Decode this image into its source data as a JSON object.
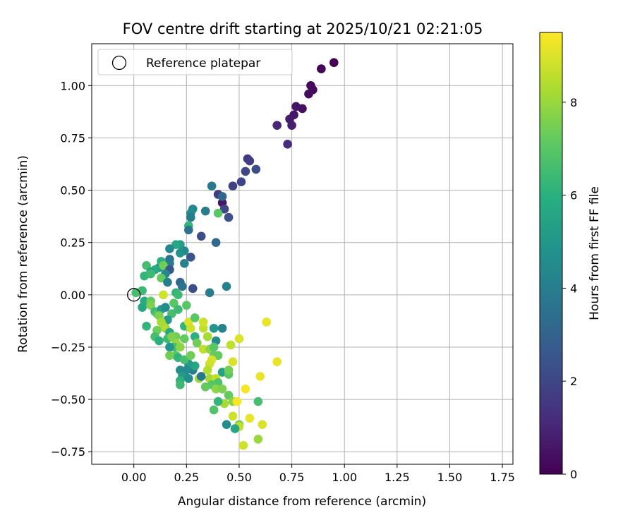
{
  "chart_data": {
    "type": "scatter",
    "title": "FOV centre drift starting at 2025/10/21 02:21:05",
    "xlabel": "Angular distance from reference (arcmin)",
    "ylabel": "Rotation from reference (arcmin)",
    "xlim": [
      -0.2,
      1.8
    ],
    "ylim": [
      -0.81,
      1.2
    ],
    "xticks": [
      "0.00",
      "0.25",
      "0.50",
      "0.75",
      "1.00",
      "1.25",
      "1.50",
      "1.75"
    ],
    "yticks": [
      "−0.75",
      "−0.50",
      "−0.25",
      "0.00",
      "0.25",
      "0.50",
      "0.75",
      "1.00"
    ],
    "grid": true,
    "legend": {
      "placement": "top-left",
      "entries": [
        {
          "label": "Reference platepar",
          "marker": "open-circle"
        }
      ]
    },
    "reference_point": {
      "x": 0,
      "y": 0
    },
    "colorbar": {
      "label": "Hours from first FF file",
      "colormap": "viridis",
      "min": 0,
      "max": 9.5,
      "ticks": [
        "0",
        "2",
        "4",
        "6",
        "8"
      ]
    },
    "series": [
      {
        "points": [
          [
            0.95,
            1.11,
            0.0
          ],
          [
            0.89,
            1.08,
            0.1
          ],
          [
            0.84,
            1.0,
            0.2
          ],
          [
            0.85,
            0.98,
            0.25
          ],
          [
            0.83,
            0.96,
            0.3
          ],
          [
            0.8,
            0.89,
            0.35
          ],
          [
            0.77,
            0.9,
            0.5
          ],
          [
            0.76,
            0.86,
            0.6
          ],
          [
            0.74,
            0.84,
            0.7
          ],
          [
            0.75,
            0.81,
            0.8
          ],
          [
            0.68,
            0.81,
            1.0
          ],
          [
            0.73,
            0.72,
            1.2
          ],
          [
            0.54,
            0.65,
            1.6
          ],
          [
            0.55,
            0.64,
            1.7
          ],
          [
            0.58,
            0.6,
            2.2
          ],
          [
            0.53,
            0.59,
            2.0
          ],
          [
            0.51,
            0.54,
            1.9
          ],
          [
            0.47,
            0.52,
            1.8
          ],
          [
            0.4,
            0.48,
            1.7
          ],
          [
            0.42,
            0.44,
            0.6
          ],
          [
            0.43,
            0.41,
            2.0
          ],
          [
            0.45,
            0.37,
            2.3
          ],
          [
            0.42,
            0.47,
            3.2
          ],
          [
            0.37,
            0.52,
            3.8
          ],
          [
            0.4,
            0.39,
            7.0
          ],
          [
            0.34,
            0.4,
            4.0
          ],
          [
            0.28,
            0.41,
            4.4
          ],
          [
            0.27,
            0.39,
            4.6
          ],
          [
            0.27,
            0.37,
            4.0
          ],
          [
            0.26,
            0.33,
            6.2
          ],
          [
            0.26,
            0.31,
            3.6
          ],
          [
            0.32,
            0.28,
            2.2
          ],
          [
            0.39,
            0.25,
            3.2
          ],
          [
            0.27,
            0.18,
            2.4
          ],
          [
            0.22,
            0.24,
            5.2
          ],
          [
            0.2,
            0.24,
            5.6
          ],
          [
            0.24,
            0.21,
            4.4
          ],
          [
            0.22,
            0.2,
            4.8
          ],
          [
            0.24,
            0.15,
            4.2
          ],
          [
            0.17,
            0.22,
            4.4
          ],
          [
            0.17,
            0.17,
            3.6
          ],
          [
            0.17,
            0.15,
            4.0
          ],
          [
            0.12,
            0.13,
            5.0
          ],
          [
            0.13,
            0.16,
            6.0
          ],
          [
            0.14,
            0.14,
            7.4
          ],
          [
            0.1,
            0.12,
            5.8
          ],
          [
            0.06,
            0.14,
            6.6
          ],
          [
            0.05,
            0.09,
            6.2
          ],
          [
            0.08,
            0.11,
            5.4
          ],
          [
            0.08,
            0.1,
            6.4
          ],
          [
            0.17,
            0.12,
            2.6
          ],
          [
            0.15,
            0.1,
            4.4
          ],
          [
            0.13,
            0.08,
            7.2
          ],
          [
            0.16,
            0.06,
            4.0
          ],
          [
            0.22,
            0.06,
            3.2
          ],
          [
            0.23,
            0.04,
            3.6
          ],
          [
            0.28,
            0.03,
            2.2
          ],
          [
            0.36,
            0.01,
            4.0
          ],
          [
            0.44,
            0.04,
            4.2
          ],
          [
            0.2,
            0.01,
            6.2
          ],
          [
            0.21,
            0.0,
            6.4
          ],
          [
            0.14,
            0.0,
            8.8
          ],
          [
            0.04,
            0.02,
            6.4
          ],
          [
            0.01,
            0.01,
            6.6
          ],
          [
            0.05,
            -0.03,
            5.8
          ],
          [
            0.04,
            -0.06,
            5.6
          ],
          [
            0.08,
            -0.03,
            7.2
          ],
          [
            0.08,
            -0.05,
            7.6
          ],
          [
            0.1,
            -0.08,
            6.4
          ],
          [
            0.11,
            -0.09,
            6.8
          ],
          [
            0.13,
            -0.07,
            5.2
          ],
          [
            0.12,
            -0.1,
            7.6
          ],
          [
            0.15,
            -0.06,
            4.6
          ],
          [
            0.18,
            -0.09,
            6.6
          ],
          [
            0.16,
            -0.12,
            5.2
          ],
          [
            0.19,
            -0.04,
            7.0
          ],
          [
            0.21,
            -0.07,
            6.4
          ],
          [
            0.25,
            -0.05,
            7.0
          ],
          [
            0.15,
            -0.16,
            7.8
          ],
          [
            0.14,
            -0.15,
            8.4
          ],
          [
            0.13,
            -0.13,
            8.2
          ],
          [
            0.11,
            -0.17,
            7.4
          ],
          [
            0.1,
            -0.2,
            6.6
          ],
          [
            0.12,
            -0.22,
            6.0
          ],
          [
            0.06,
            -0.15,
            6.2
          ],
          [
            0.17,
            -0.18,
            5.6
          ],
          [
            0.2,
            -0.2,
            7.4
          ],
          [
            0.2,
            -0.23,
            8.0
          ],
          [
            0.19,
            -0.25,
            6.6
          ],
          [
            0.17,
            -0.25,
            5.0
          ],
          [
            0.22,
            -0.25,
            7.8
          ],
          [
            0.24,
            -0.21,
            7.2
          ],
          [
            0.24,
            -0.15,
            6.2
          ],
          [
            0.26,
            -0.13,
            9.0
          ],
          [
            0.27,
            -0.16,
            8.8
          ],
          [
            0.29,
            -0.11,
            7.0
          ],
          [
            0.29,
            -0.2,
            6.0
          ],
          [
            0.3,
            -0.23,
            7.4
          ],
          [
            0.33,
            -0.16,
            8.6
          ],
          [
            0.33,
            -0.13,
            8.8
          ],
          [
            0.35,
            -0.2,
            8.2
          ],
          [
            0.33,
            -0.26,
            8.6
          ],
          [
            0.36,
            -0.26,
            7.8
          ],
          [
            0.38,
            -0.29,
            7.2
          ],
          [
            0.39,
            -0.22,
            4.6
          ],
          [
            0.38,
            -0.16,
            5.0
          ],
          [
            0.38,
            -0.25,
            7.0
          ],
          [
            0.42,
            -0.16,
            4.2
          ],
          [
            0.4,
            -0.29,
            7.2
          ],
          [
            0.42,
            -0.37,
            5.4
          ],
          [
            0.45,
            -0.38,
            7.0
          ],
          [
            0.37,
            -0.31,
            9.0
          ],
          [
            0.36,
            -0.33,
            8.8
          ],
          [
            0.35,
            -0.36,
            8.4
          ],
          [
            0.36,
            -0.4,
            8.2
          ],
          [
            0.39,
            -0.4,
            8.6
          ],
          [
            0.4,
            -0.42,
            6.8
          ],
          [
            0.37,
            -0.43,
            7.0
          ],
          [
            0.39,
            -0.45,
            7.8
          ],
          [
            0.42,
            -0.45,
            7.6
          ],
          [
            0.34,
            -0.44,
            7.2
          ],
          [
            0.31,
            -0.4,
            8.0
          ],
          [
            0.32,
            -0.39,
            3.8
          ],
          [
            0.28,
            -0.36,
            4.0
          ],
          [
            0.29,
            -0.34,
            5.6
          ],
          [
            0.26,
            -0.33,
            5.2
          ],
          [
            0.25,
            -0.36,
            4.6
          ],
          [
            0.22,
            -0.36,
            4.6
          ],
          [
            0.23,
            -0.39,
            5.2
          ],
          [
            0.26,
            -0.4,
            4.6
          ],
          [
            0.22,
            -0.41,
            6.0
          ],
          [
            0.22,
            -0.43,
            6.4
          ],
          [
            0.2,
            -0.29,
            7.0
          ],
          [
            0.17,
            -0.29,
            7.4
          ],
          [
            0.21,
            -0.3,
            6.2
          ],
          [
            0.24,
            -0.31,
            6.6
          ],
          [
            0.27,
            -0.29,
            7.4
          ],
          [
            0.16,
            -0.21,
            6.4
          ],
          [
            0.18,
            -0.2,
            7.6
          ],
          [
            0.46,
            -0.24,
            8.6
          ],
          [
            0.5,
            -0.21,
            9.0
          ],
          [
            0.63,
            -0.13,
            9.2
          ],
          [
            0.68,
            -0.32,
            9.2
          ],
          [
            0.47,
            -0.32,
            9.0
          ],
          [
            0.45,
            -0.36,
            7.4
          ],
          [
            0.45,
            -0.48,
            7.2
          ],
          [
            0.47,
            -0.51,
            7.8
          ],
          [
            0.53,
            -0.45,
            9.4
          ],
          [
            0.6,
            -0.39,
            9.2
          ],
          [
            0.59,
            -0.51,
            6.6
          ],
          [
            0.49,
            -0.51,
            9.4
          ],
          [
            0.43,
            -0.52,
            8.2
          ],
          [
            0.4,
            -0.51,
            6.2
          ],
          [
            0.38,
            -0.55,
            6.8
          ],
          [
            0.47,
            -0.58,
            8.8
          ],
          [
            0.55,
            -0.59,
            9.2
          ],
          [
            0.61,
            -0.62,
            9.0
          ],
          [
            0.5,
            -0.62,
            7.6
          ],
          [
            0.5,
            -0.63,
            8.6
          ],
          [
            0.44,
            -0.62,
            4.6
          ],
          [
            0.48,
            -0.64,
            5.6
          ],
          [
            0.59,
            -0.69,
            8.0
          ],
          [
            0.52,
            -0.72,
            8.8
          ]
        ]
      }
    ]
  }
}
